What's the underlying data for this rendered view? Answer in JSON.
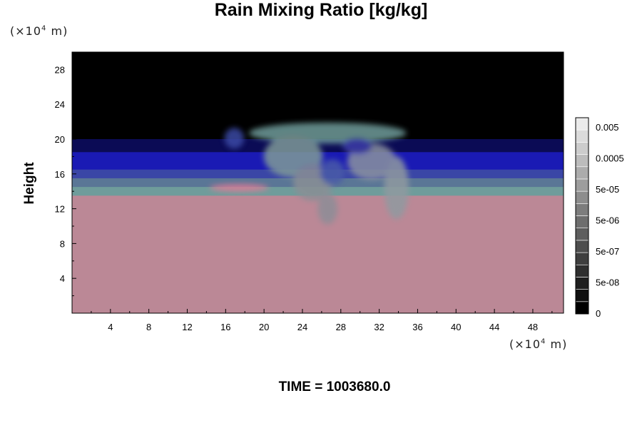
{
  "chart_data": {
    "type": "heatmap",
    "title": "Rain Mixing Ratio [kg/kg]",
    "ylabel": "Height",
    "x_unit": {
      "prefix": "(×10",
      "exp": "4",
      "suffix": " m)"
    },
    "y_unit": {
      "prefix": "(×10",
      "exp": "4",
      "suffix": " m)"
    },
    "xlim": [
      0,
      51.2
    ],
    "ylim": [
      0,
      30
    ],
    "x_ticks": [
      4,
      8,
      12,
      16,
      20,
      24,
      28,
      32,
      36,
      40,
      44,
      48
    ],
    "y_ticks": [
      4,
      8,
      12,
      16,
      20,
      24,
      28
    ],
    "field_bands": [
      {
        "from": 20,
        "to": 30,
        "color": "#000000"
      },
      {
        "from": 18.5,
        "to": 20,
        "color": "#0b0b55"
      },
      {
        "from": 16.5,
        "to": 18.5,
        "color": "#1a1ab4"
      },
      {
        "from": 15.5,
        "to": 16.5,
        "color": "#3a46a6"
      },
      {
        "from": 14.5,
        "to": 15.5,
        "color": "#5a7696"
      },
      {
        "from": 13.5,
        "to": 14.5,
        "color": "#6f9c9b"
      },
      {
        "from": 0,
        "to": 13.5,
        "color": "#bb8896"
      }
    ],
    "colorbar": {
      "labels": [
        "0.005",
        "0.0005",
        "5e-05",
        "5e-06",
        "5e-07",
        "5e-08",
        "0"
      ],
      "levels": 16
    },
    "time_label": "TIME = 1003680.0"
  }
}
